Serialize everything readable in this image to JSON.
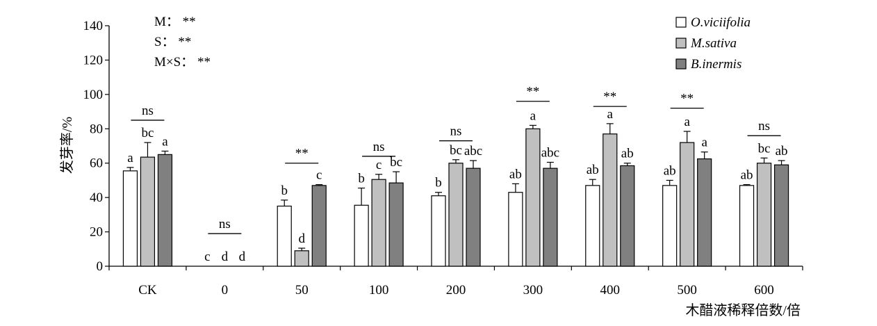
{
  "chart_data": {
    "type": "bar",
    "title": "",
    "xlabel": "木醋液稀释倍数/倍",
    "ylabel": "发芽率/%",
    "ylim": [
      0,
      140
    ],
    "yticks": [
      0,
      20,
      40,
      60,
      80,
      100,
      120,
      140
    ],
    "grid": false,
    "legend_position": "top-right",
    "categories": [
      "CK",
      "0",
      "50",
      "100",
      "200",
      "300",
      "400",
      "500",
      "600"
    ],
    "series": [
      {
        "name": "O.viciifolia",
        "color": "#ffffff",
        "values": [
          55.5,
          0,
          35,
          35.5,
          41,
          43,
          47,
          47,
          47
        ],
        "errors": [
          2,
          0,
          3.5,
          10,
          2,
          5,
          3.5,
          3,
          0.5
        ],
        "letters": [
          "a",
          "c",
          "b",
          "b",
          "b",
          "ab",
          "ab",
          "ab",
          "ab"
        ]
      },
      {
        "name": "M.sativa",
        "color": "#c0c0c0",
        "values": [
          63.5,
          0,
          9,
          50.5,
          60,
          80,
          77,
          72,
          60
        ],
        "errors": [
          8.5,
          0,
          1.5,
          3,
          2,
          2,
          6,
          6.5,
          3
        ],
        "letters": [
          "bc",
          "d",
          "d",
          "c",
          "bc",
          "a",
          "a",
          "a",
          "bc"
        ]
      },
      {
        "name": "B.inermis",
        "color": "#808080",
        "values": [
          65,
          0,
          47,
          48.5,
          57,
          57,
          58.5,
          62.5,
          59
        ],
        "errors": [
          2,
          0,
          0.5,
          6.5,
          4.5,
          3.5,
          1.5,
          4,
          2.5
        ],
        "letters": [
          "a",
          "d",
          "c",
          "bc",
          "abc",
          "abc",
          "ab",
          "a",
          "ab"
        ]
      }
    ],
    "significance": [
      {
        "label": "ns",
        "y": 85
      },
      {
        "label": "ns",
        "y": 19
      },
      {
        "label": "**",
        "y": 60
      },
      {
        "label": "ns",
        "y": 64
      },
      {
        "label": "ns",
        "y": 73
      },
      {
        "label": "**",
        "y": 96
      },
      {
        "label": "**",
        "y": 93
      },
      {
        "label": "**",
        "y": 92
      },
      {
        "label": "ns",
        "y": 76
      }
    ],
    "anova": [
      {
        "label": "M：",
        "value": "**"
      },
      {
        "label": "S：",
        "value": "**"
      },
      {
        "label": "M×S：",
        "value": "**"
      }
    ]
  }
}
